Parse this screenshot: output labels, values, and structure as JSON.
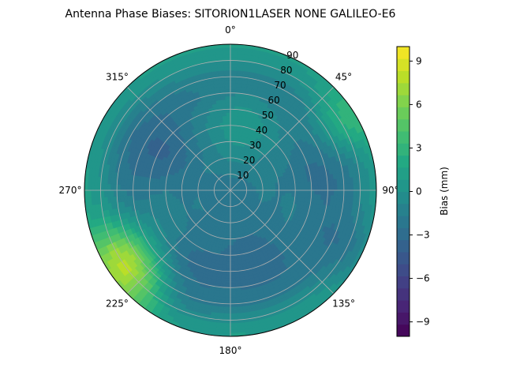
{
  "chart_data": {
    "type": "heatmap",
    "projection": "polar",
    "title": "Antenna Phase Biases: SITORION1LASER  NONE GALILEO-E6",
    "angular_ticks": [
      "0°",
      "45°",
      "90°",
      "135°",
      "180°",
      "225°",
      "270°",
      "315°"
    ],
    "radial_ticks": [
      "10",
      "20",
      "30",
      "40",
      "50",
      "60",
      "70",
      "80",
      "90"
    ],
    "radial_range": [
      0,
      90
    ],
    "angular_zero": "top",
    "angular_direction": "clockwise",
    "grid": true,
    "colorbar": {
      "label": "Bias (mm)",
      "range": [
        -10,
        10
      ],
      "ticks": [
        "−9",
        "−6",
        "−3",
        "0",
        "3",
        "6",
        "9"
      ],
      "tick_values": [
        -9,
        -6,
        -3,
        0,
        3,
        6,
        9
      ],
      "levels": 24,
      "colormap": "viridis"
    },
    "bias_field": {
      "description_units": "mm",
      "zenith_values": [
        {
          "elevation_ring_r": 10,
          "value": -2.0
        },
        {
          "elevation_ring_r": 20,
          "value": -1.5
        },
        {
          "elevation_ring_r": 30,
          "value": -1.5
        },
        {
          "elevation_ring_r": 40,
          "value": -1.0
        },
        {
          "elevation_ring_r": 50,
          "value": -1.5
        },
        {
          "elevation_ring_r": 60,
          "value": -2.0
        },
        {
          "elevation_ring_r": 70,
          "value": -1.5
        },
        {
          "elevation_ring_r": 80,
          "value": 0.0
        },
        {
          "elevation_ring_r": 90,
          "value": 1.0
        }
      ],
      "hot_spots": [
        {
          "azimuth_deg": 240,
          "r": 82,
          "value": 5.5
        },
        {
          "azimuth_deg": 225,
          "r": 85,
          "value": 4.5
        },
        {
          "azimuth_deg": 60,
          "r": 88,
          "value": 3.5
        },
        {
          "azimuth_deg": 10,
          "r": 40,
          "value": 0.5
        }
      ],
      "cold_spots": [
        {
          "azimuth_deg": 300,
          "r": 50,
          "value": -3.5
        },
        {
          "azimuth_deg": 75,
          "r": 60,
          "value": -3.0
        },
        {
          "azimuth_deg": 160,
          "r": 45,
          "value": -3.0
        },
        {
          "azimuth_deg": 210,
          "r": 55,
          "value": -3.0
        },
        {
          "azimuth_deg": 115,
          "r": 70,
          "value": -2.5
        }
      ]
    }
  },
  "colors": {
    "viridis": [
      "#440154",
      "#482475",
      "#414487",
      "#355f8d",
      "#2a788e",
      "#21918c",
      "#22a884",
      "#44bf70",
      "#7ad151",
      "#bddf26",
      "#fde725"
    ],
    "grid": "#b0b0b0"
  }
}
